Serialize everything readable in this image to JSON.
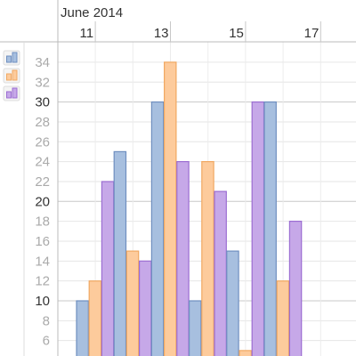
{
  "chart_data": {
    "type": "bar",
    "month_label": "June 2014",
    "date_ticks": [
      "11",
      "13",
      "15",
      "17"
    ],
    "categories": [
      "2014-06-10",
      "2014-06-11",
      "2014-06-12",
      "2014-06-13",
      "2014-06-14",
      "2014-06-15",
      "2014-06-16"
    ],
    "series": [
      {
        "color": "#a7bfdf",
        "stroke": "#6f8fc0",
        "values": [
          10,
          25,
          30,
          10,
          15,
          30,
          null
        ]
      },
      {
        "color": "#fdcb9c",
        "stroke": "#f1a862",
        "values": [
          12,
          15,
          34,
          24,
          5,
          12,
          null
        ]
      },
      {
        "color": "#c6a8e8",
        "stroke": "#9b6dd2",
        "values": [
          22,
          14,
          24,
          21,
          30,
          18,
          null
        ]
      }
    ],
    "y_ticks": [
      6,
      8,
      10,
      12,
      14,
      16,
      18,
      20,
      22,
      24,
      26,
      28,
      30,
      32,
      34
    ],
    "ylim": [
      4,
      36
    ],
    "grid": true,
    "legend_position": "left"
  }
}
